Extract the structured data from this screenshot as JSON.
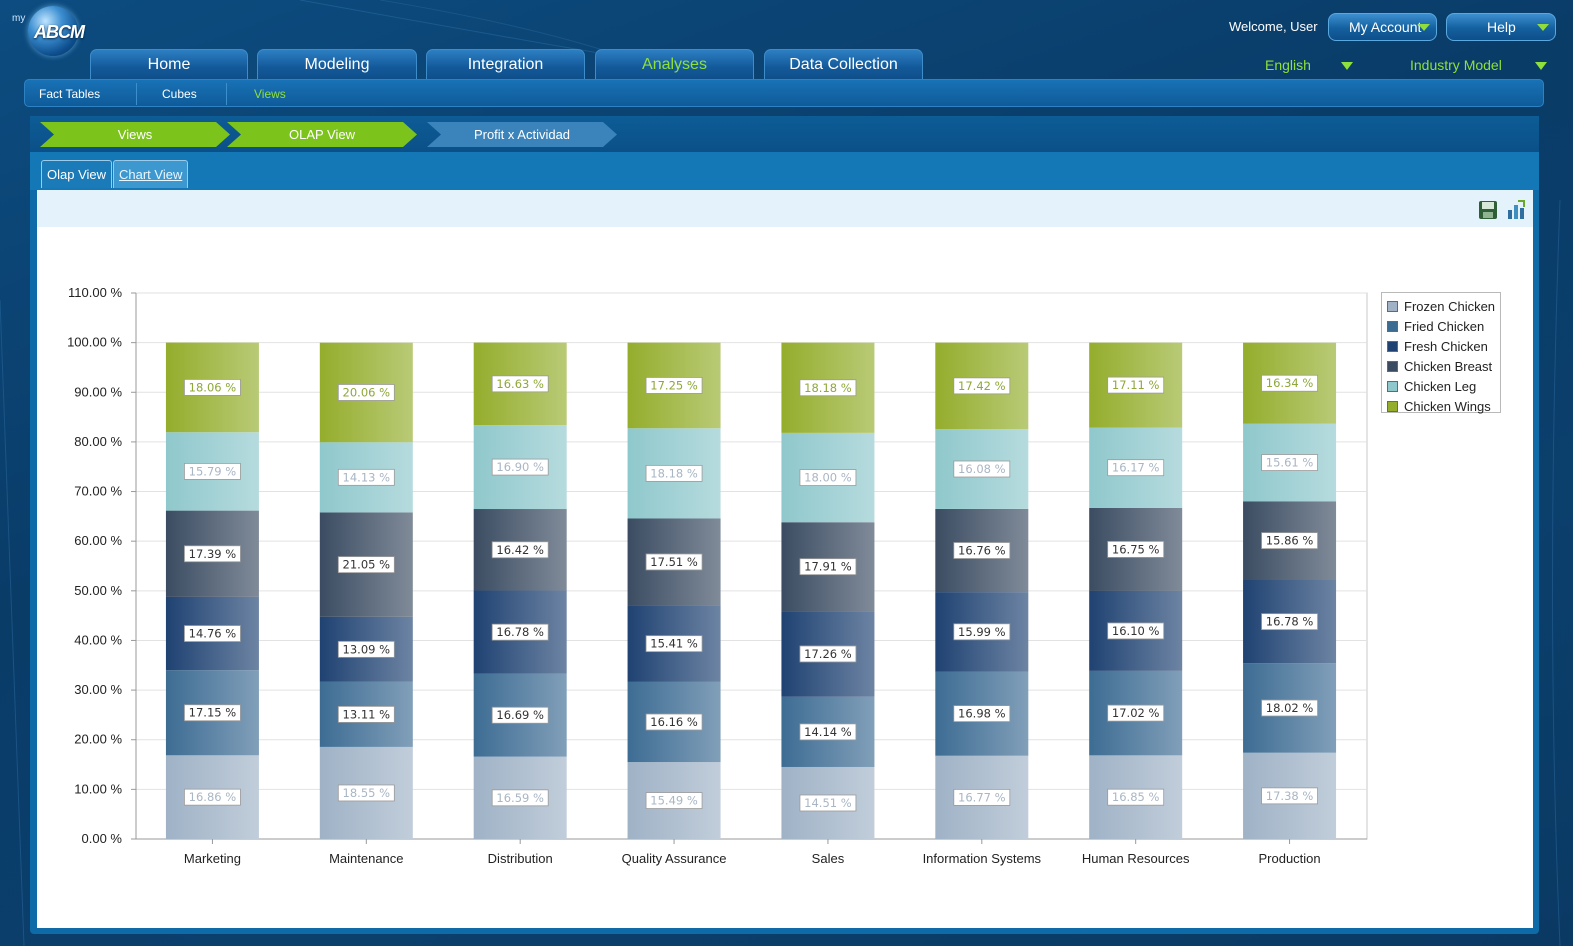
{
  "header": {
    "logo_text": "ABCM",
    "logo_prefix": "my",
    "welcome": "Welcome, User",
    "account_label": "My Account",
    "help_label": "Help",
    "language": "English",
    "model": "Industry Model"
  },
  "nav": {
    "tabs": [
      "Home",
      "Modeling",
      "Integration",
      "Analyses",
      "Data Collection"
    ],
    "active": "Analyses"
  },
  "subnav": {
    "items": [
      "Fact Tables",
      "Cubes",
      "Views"
    ],
    "active": "Views"
  },
  "breadcrumb": [
    "Views",
    "OLAP View",
    "Profit x Actividad"
  ],
  "view_tabs": {
    "olap": "Olap View",
    "chart": "Chart View"
  },
  "toolbar": {
    "save_icon": "save-icon",
    "export_icon": "chart-export-icon"
  },
  "colors": {
    "accent_green": "#8fe03a",
    "nav_blue": "#13599a"
  },
  "chart_data": {
    "type": "bar",
    "stacked": true,
    "percent": true,
    "categories": [
      "Marketing",
      "Maintenance",
      "Distribution",
      "Quality Assurance",
      "Sales",
      "Information Systems",
      "Human Resources",
      "Production"
    ],
    "ylim": [
      0,
      110
    ],
    "yticks": [
      "0.00 %",
      "10.00 %",
      "20.00 %",
      "30.00 %",
      "40.00 %",
      "50.00 %",
      "60.00 %",
      "70.00 %",
      "80.00 %",
      "90.00 %",
      "100.00 %",
      "110.00 %"
    ],
    "grid": true,
    "legend_position": "right",
    "series": [
      {
        "name": "Frozen Chicken",
        "color": "#9fb2c6",
        "values": [
          16.86,
          18.55,
          16.59,
          15.49,
          14.51,
          16.77,
          16.85,
          17.38
        ]
      },
      {
        "name": "Fried Chicken",
        "color": "#3d6c93",
        "values": [
          17.15,
          13.11,
          16.69,
          16.16,
          14.14,
          16.98,
          17.02,
          18.02
        ]
      },
      {
        "name": "Fresh Chicken",
        "color": "#1f4272",
        "values": [
          14.76,
          13.09,
          16.78,
          15.41,
          17.26,
          15.99,
          16.1,
          16.78
        ]
      },
      {
        "name": "Chicken Breast",
        "color": "#3b4c62",
        "values": [
          17.39,
          21.05,
          16.42,
          17.51,
          17.91,
          16.76,
          16.75,
          15.86
        ]
      },
      {
        "name": "Chicken Leg",
        "color": "#8fc8cc",
        "values": [
          15.79,
          14.13,
          16.9,
          18.18,
          18.0,
          16.08,
          16.17,
          15.61
        ]
      },
      {
        "name": "Chicken Wings",
        "color": "#94ad2c",
        "values": [
          18.06,
          20.06,
          16.63,
          17.25,
          18.18,
          17.42,
          17.11,
          16.34
        ]
      }
    ],
    "labels": [
      [
        "16.86 %",
        "18.55 %",
        "16.59 %",
        "15.49 %",
        "14.51 %",
        "16.77 %",
        "16.85 %",
        "17.38 %"
      ],
      [
        "17.15 %",
        "13.11 %",
        "16.69 %",
        "16.16 %",
        "14.14 %",
        "16.98 %",
        "17.02 %",
        "18.02 %"
      ],
      [
        "14.76 %",
        "13.09 %",
        "16.78 %",
        "15.41 %",
        "17.26 %",
        "15.99 %",
        "16.10 %",
        "16.78 %"
      ],
      [
        "17.39 %",
        "21.05 %",
        "16.42 %",
        "17.51 %",
        "17.91 %",
        "16.76 %",
        "16.75 %",
        "15.86 %"
      ],
      [
        "15.79 %",
        "14.13 %",
        "16.90 %",
        "18.18 %",
        "18.00 %",
        "16.08 %",
        "16.17 %",
        "15.61 %"
      ],
      [
        "18.06 %",
        "20.06 %",
        "16.63 %",
        "17.25 %",
        "18.18 %",
        "17.42 %",
        "17.11 %",
        "16.34 %"
      ]
    ]
  }
}
